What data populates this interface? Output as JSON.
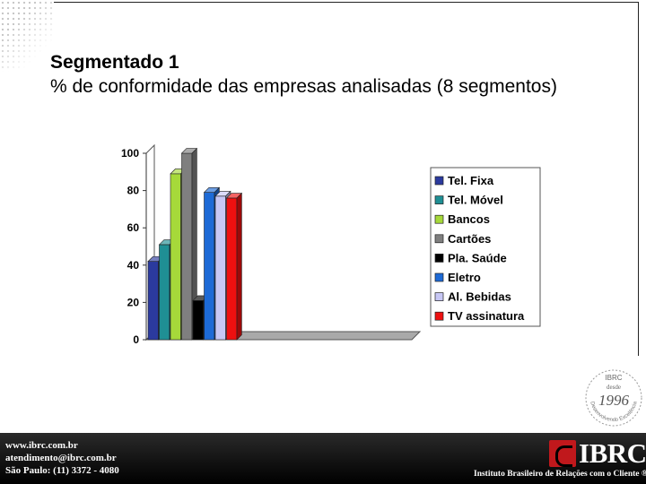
{
  "header": {
    "title": "Segmentado 1",
    "subtitle": "% de conformidade das empresas analisadas (8 segmentos)"
  },
  "chart_data": {
    "type": "bar",
    "title": "",
    "xlabel": "",
    "ylabel": "",
    "ylim": [
      0,
      100
    ],
    "y_ticks": [
      "0",
      "20",
      "40",
      "60",
      "80",
      "100"
    ],
    "grid": false,
    "legend_position": "right",
    "style": "3d",
    "series": [
      {
        "name": "Tel. Fixa",
        "values": [
          42
        ],
        "color": "#2b3a9e"
      },
      {
        "name": "Tel. Móvel",
        "values": [
          51
        ],
        "color": "#1f8f94"
      },
      {
        "name": "Bancos",
        "values": [
          89
        ],
        "color": "#a6d93a"
      },
      {
        "name": "Cartões",
        "values": [
          100
        ],
        "color": "#7f7f7f"
      },
      {
        "name": "Pla. Saúde",
        "values": [
          21
        ],
        "color": "#000000"
      },
      {
        "name": "Eletro",
        "values": [
          79
        ],
        "color": "#1d6ad6"
      },
      {
        "name": "Al. Bebidas",
        "values": [
          77
        ],
        "color": "#c7c7f5"
      },
      {
        "name": "TV assinatura",
        "values": [
          76
        ],
        "color": "#ee1010"
      }
    ]
  },
  "seal": {
    "top": "IBRC",
    "middle": "desde",
    "year": "1996",
    "ring": "Desenvolvendo Excelência"
  },
  "footer": {
    "website": "www.ibrc.com.br",
    "email": "atendimento@ibrc.com.br",
    "phone": "São Paulo: (11) 3372 - 4080",
    "logo_text": "IBRC",
    "tagline": "Instituto Brasileiro de Relações com o Cliente ®"
  }
}
